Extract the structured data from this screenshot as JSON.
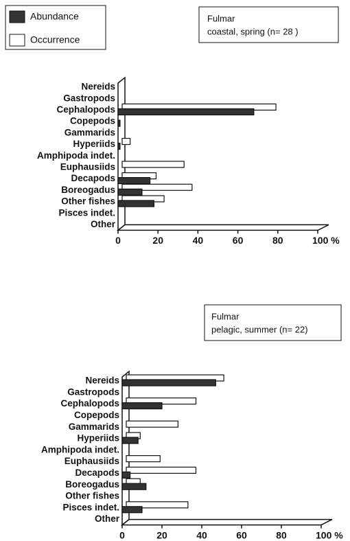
{
  "chart_data": [
    {
      "type": "bar",
      "orientation": "horizontal",
      "title": "Fulmar",
      "subtitle": "coastal, spring (n= 28 )",
      "categories": [
        "Nereids",
        "Gastropods",
        "Cephalopods",
        "Copepods",
        "Gammarids",
        "Hyperiids",
        "Amphipoda indet.",
        "Euphausiids",
        "Decapods",
        "Boreogadus",
        "Other fishes",
        "Pisces indet.",
        "Other"
      ],
      "series": [
        {
          "name": "Abundance",
          "color": "#333333",
          "values": [
            0,
            0,
            68,
            1,
            0,
            1,
            0,
            0,
            16,
            12,
            18,
            0,
            0
          ]
        },
        {
          "name": "Occurrence",
          "color": "#ffffff",
          "values": [
            0,
            0,
            77,
            0,
            0,
            4,
            0,
            31,
            17,
            35,
            21,
            0,
            0
          ]
        }
      ],
      "xlim": [
        0,
        100
      ],
      "xticks": [
        0,
        20,
        40,
        60,
        80,
        {
          "value": 100,
          "label": "100 %"
        }
      ]
    },
    {
      "type": "bar",
      "orientation": "horizontal",
      "title": "Fulmar",
      "subtitle": "pelagic, summer (n= 22)",
      "categories": [
        "Nereids",
        "Gastropods",
        "Cephalopods",
        "Copepods",
        "Gammarids",
        "Hyperiids",
        "Amphipoda indet.",
        "Euphausiids",
        "Decapods",
        "Boreogadus",
        "Other fishes",
        "Pisces indet.",
        "Other"
      ],
      "series": [
        {
          "color": "#333333",
          "values": [
            47,
            0,
            20,
            0,
            0,
            8,
            0,
            0,
            4,
            12,
            0,
            10,
            0
          ]
        },
        {
          "color": "#ffffff",
          "values": [
            49,
            0,
            35,
            0,
            26,
            7,
            0,
            17,
            35,
            7,
            0,
            31,
            0
          ]
        }
      ],
      "xlim": [
        0,
        100
      ],
      "xticks": [
        0,
        20,
        40,
        60,
        80,
        {
          "value": 100,
          "label": "100 %"
        }
      ]
    }
  ]
}
